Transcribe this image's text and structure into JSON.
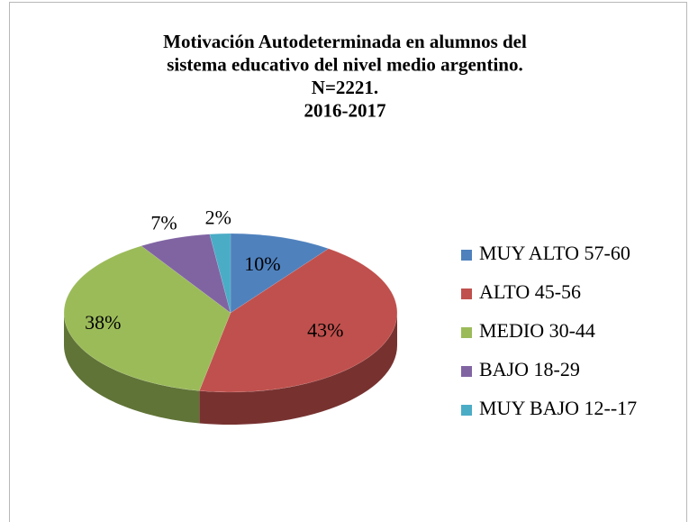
{
  "chart_data": {
    "type": "pie3d",
    "title": [
      "Motivación Autodeterminada en alumnos del",
      "sistema educativo del nivel medio argentino.",
      "N=2221.",
      "2016-2017"
    ],
    "categories": [
      "MUY ALTO 57-60",
      "ALTO 45-56",
      "MEDIO 30-44",
      "BAJO 18-29",
      "MUY BAJO 12--17"
    ],
    "values": [
      10,
      43,
      38,
      7,
      2
    ],
    "value_labels": [
      "10%",
      "43%",
      "38%",
      "7%",
      "2%"
    ],
    "colors": [
      "#4f81bd",
      "#c0504d",
      "#9bbb59",
      "#8064a2",
      "#4bacc6"
    ],
    "legend": "right"
  }
}
